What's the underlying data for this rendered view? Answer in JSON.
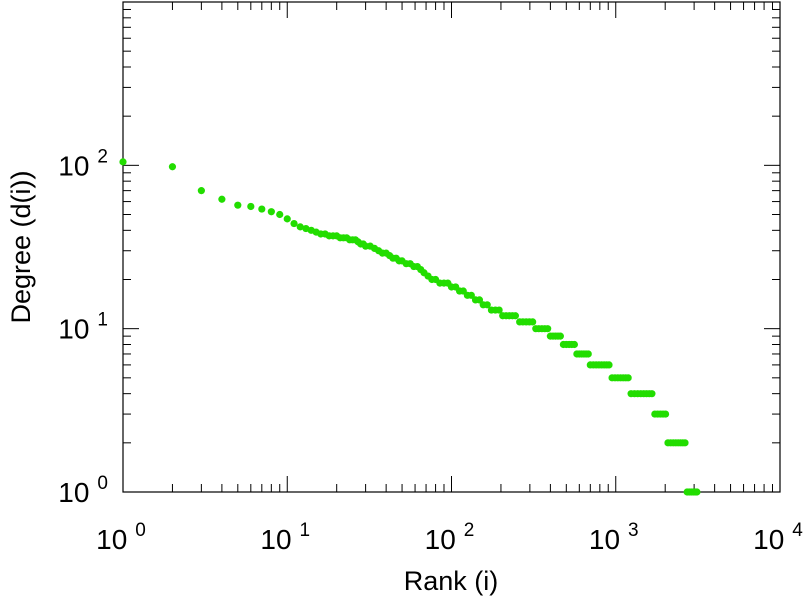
{
  "chart_data": {
    "type": "scatter",
    "title": "",
    "xlabel": "Rank (i)",
    "ylabel": "Degree (d(i))",
    "x_scale": "log",
    "y_scale": "log",
    "xlim": [
      1,
      10000
    ],
    "ylim": [
      1,
      1000
    ],
    "grid": false,
    "marker_color": "#22dd00",
    "x_ticks": [
      {
        "base": "10",
        "exp": "0"
      },
      {
        "base": "10",
        "exp": "1"
      },
      {
        "base": "10",
        "exp": "2"
      },
      {
        "base": "10",
        "exp": "3"
      },
      {
        "base": "10",
        "exp": "4"
      }
    ],
    "y_ticks": [
      {
        "base": "10",
        "exp": "0"
      },
      {
        "base": "10",
        "exp": "1"
      },
      {
        "base": "10",
        "exp": "2"
      }
    ],
    "points": [
      [
        1,
        105
      ],
      [
        2,
        98
      ],
      [
        3,
        70
      ],
      [
        4,
        62
      ],
      [
        5,
        57
      ],
      [
        6,
        56
      ],
      [
        7,
        54
      ],
      [
        8,
        52
      ],
      [
        9,
        50
      ],
      [
        10,
        47
      ],
      [
        11,
        44
      ],
      [
        12,
        42
      ],
      [
        13,
        41
      ],
      [
        14,
        40
      ],
      [
        15,
        39
      ],
      [
        16,
        38
      ],
      [
        17,
        38
      ],
      [
        18,
        37
      ],
      [
        19,
        37
      ],
      [
        20,
        37
      ],
      [
        21,
        36
      ],
      [
        22,
        36
      ],
      [
        23,
        36
      ],
      [
        24,
        35
      ],
      [
        25,
        35
      ],
      [
        26,
        35
      ],
      [
        27,
        34
      ],
      [
        28,
        33
      ],
      [
        29,
        33
      ],
      [
        30,
        32
      ],
      [
        32,
        32
      ],
      [
        34,
        31
      ],
      [
        36,
        30
      ],
      [
        38,
        29
      ],
      [
        40,
        29
      ],
      [
        42,
        28
      ],
      [
        44,
        27
      ],
      [
        46,
        27
      ],
      [
        48,
        26
      ],
      [
        50,
        26
      ],
      [
        53,
        25
      ],
      [
        56,
        25
      ],
      [
        59,
        24
      ],
      [
        62,
        24
      ],
      [
        65,
        23
      ],
      [
        68,
        22
      ],
      [
        72,
        21
      ],
      [
        76,
        20
      ],
      [
        80,
        20
      ],
      [
        85,
        19
      ],
      [
        90,
        19
      ],
      [
        95,
        19
      ],
      [
        100,
        18
      ],
      [
        106,
        18
      ],
      [
        112,
        17
      ],
      [
        118,
        17
      ],
      [
        125,
        16
      ],
      [
        132,
        16
      ],
      [
        140,
        15
      ],
      [
        148,
        15
      ],
      [
        156,
        14
      ],
      [
        165,
        14
      ],
      [
        175,
        13
      ],
      [
        185,
        13
      ],
      [
        195,
        13
      ],
      [
        205,
        12
      ],
      [
        215,
        12
      ],
      [
        225,
        12
      ],
      [
        235,
        12
      ],
      [
        245,
        12
      ],
      [
        260,
        11
      ],
      [
        272,
        11
      ],
      [
        285,
        11
      ],
      [
        298,
        11
      ],
      [
        312,
        11
      ],
      [
        326,
        10
      ],
      [
        340,
        10
      ],
      [
        355,
        10
      ],
      [
        370,
        10
      ],
      [
        385,
        10
      ],
      [
        400,
        9
      ],
      [
        415,
        9
      ],
      [
        430,
        9
      ],
      [
        445,
        9
      ],
      [
        460,
        9
      ],
      [
        480,
        8
      ],
      [
        500,
        8
      ],
      [
        520,
        8
      ],
      [
        540,
        8
      ],
      [
        560,
        8
      ],
      [
        580,
        7
      ],
      [
        600,
        7
      ],
      [
        620,
        7
      ],
      [
        640,
        7
      ],
      [
        660,
        7
      ],
      [
        680,
        7
      ],
      [
        700,
        6
      ],
      [
        730,
        6
      ],
      [
        760,
        6
      ],
      [
        790,
        6
      ],
      [
        820,
        6
      ],
      [
        850,
        6
      ],
      [
        880,
        6
      ],
      [
        910,
        6
      ],
      [
        950,
        5
      ],
      [
        990,
        5
      ],
      [
        1030,
        5
      ],
      [
        1070,
        5
      ],
      [
        1110,
        5
      ],
      [
        1150,
        5
      ],
      [
        1190,
        5
      ],
      [
        1240,
        4
      ],
      [
        1300,
        4
      ],
      [
        1360,
        4
      ],
      [
        1420,
        4
      ],
      [
        1480,
        4
      ],
      [
        1540,
        4
      ],
      [
        1600,
        4
      ],
      [
        1660,
        4
      ],
      [
        1730,
        3
      ],
      [
        1800,
        3
      ],
      [
        1870,
        3
      ],
      [
        1940,
        3
      ],
      [
        2010,
        3
      ],
      [
        2080,
        2
      ],
      [
        2160,
        2
      ],
      [
        2240,
        2
      ],
      [
        2320,
        2
      ],
      [
        2400,
        2
      ],
      [
        2480,
        2
      ],
      [
        2560,
        2
      ],
      [
        2640,
        2
      ],
      [
        2720,
        1
      ],
      [
        2800,
        1
      ],
      [
        2880,
        1
      ],
      [
        2960,
        1
      ],
      [
        3040,
        1
      ],
      [
        3120,
        1
      ]
    ]
  }
}
